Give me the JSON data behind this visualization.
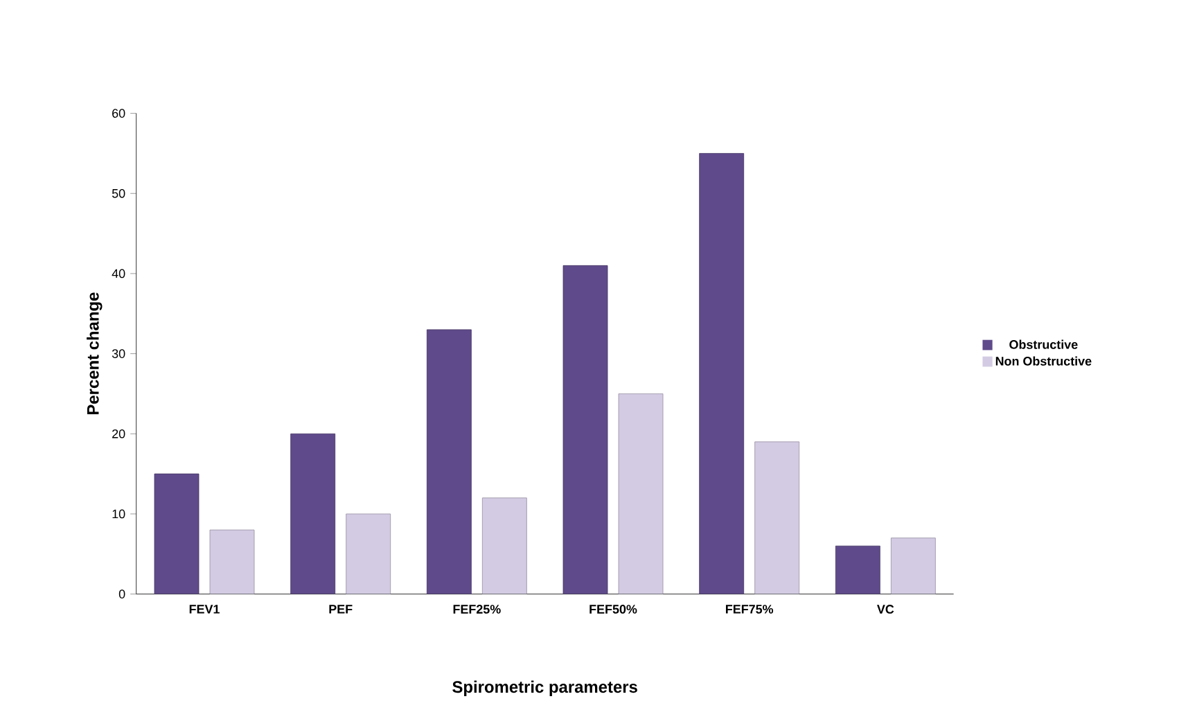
{
  "chart_data": {
    "type": "bar",
    "xlabel": "Spirometric parameters",
    "ylabel": "Percent change",
    "categories": [
      "FEV1",
      "PEF",
      "FEF25%",
      "FEF50%",
      "FEF75%",
      "VC"
    ],
    "series": [
      {
        "name": "Obstructive",
        "color": "#5f4a8b",
        "values": [
          15,
          20,
          33,
          41,
          55,
          6
        ]
      },
      {
        "name": "Non Obstructive",
        "color": "#d3cbe3",
        "values": [
          8,
          10,
          12,
          25,
          19,
          7
        ]
      }
    ],
    "ylim": [
      0,
      60
    ],
    "yticks": [
      0,
      10,
      20,
      30,
      40,
      50,
      60
    ],
    "grid": false,
    "legend": "right"
  }
}
